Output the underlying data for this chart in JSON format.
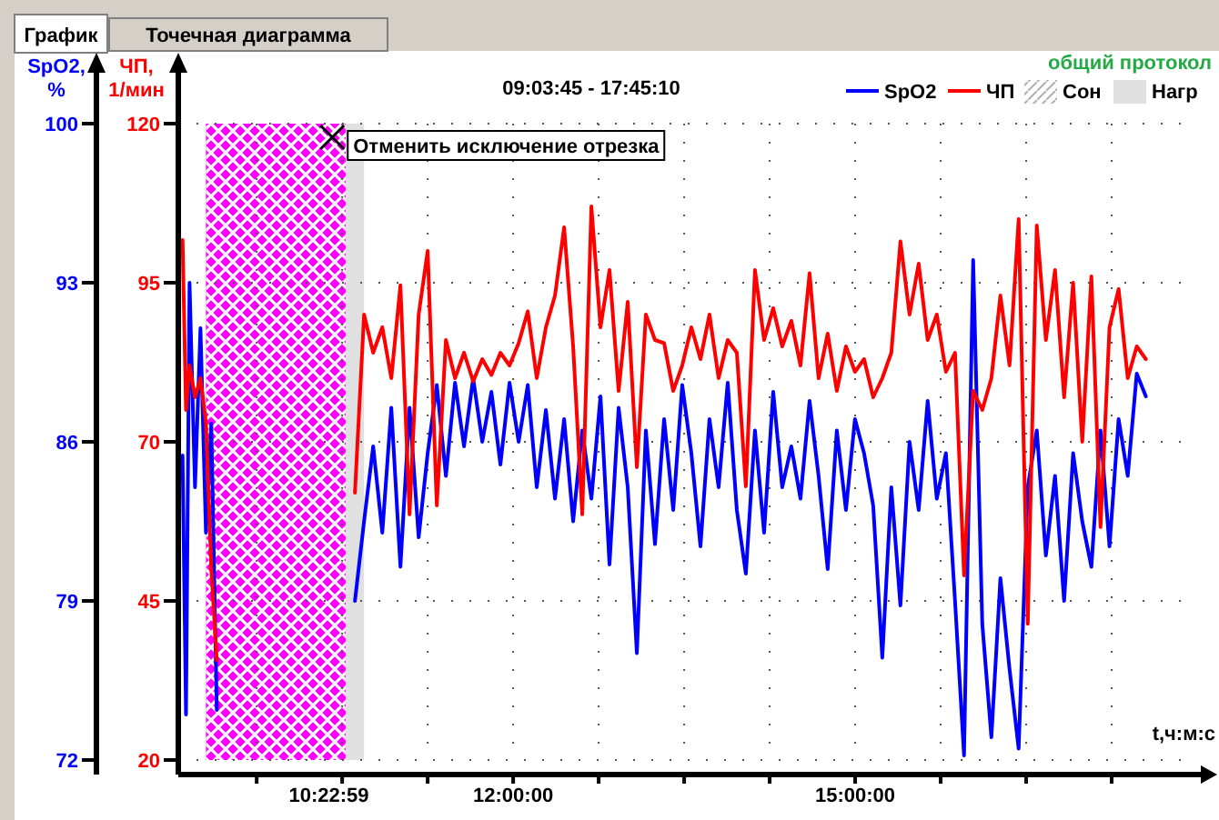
{
  "chart_data": {
    "type": "line",
    "title": "09:03:45  -  17:45:10",
    "xlabel": "t,ч:м:с",
    "ylabel": "SpO2, %",
    "y2label": "ЧП, 1/мин",
    "annotations": [
      "График",
      "Точечная диаграмма",
      "общий протокол",
      "Сон",
      "Отменить исключение отрезка"
    ],
    "x": [
      9.1,
      9.13,
      9.161,
      9.209,
      9.257,
      9.305,
      9.352,
      9.4,
      10.0,
      10.612,
      10.692,
      10.772,
      10.852,
      10.931,
      11.011,
      11.091,
      11.171,
      11.25,
      11.33,
      11.41,
      11.49,
      11.569,
      11.649,
      11.729,
      11.809,
      11.888,
      11.968,
      12.048,
      12.128,
      12.207,
      12.287,
      12.367,
      12.447,
      12.526,
      12.606,
      12.686,
      12.766,
      12.845,
      12.925,
      13.005,
      13.085,
      13.164,
      13.244,
      13.324,
      13.404,
      13.483,
      13.563,
      13.643,
      13.722,
      13.802,
      13.882,
      13.962,
      14.041,
      14.121,
      14.201,
      14.281,
      14.36,
      14.44,
      14.52,
      14.6,
      14.679,
      14.759,
      14.839,
      14.919,
      14.998,
      15.078,
      15.158,
      15.238,
      15.317,
      15.397,
      15.477,
      15.557,
      15.636,
      15.716,
      15.796,
      15.876,
      15.955,
      16.035,
      16.115,
      16.195,
      16.274,
      16.354,
      16.434,
      16.514,
      16.593,
      16.673,
      16.753,
      16.833,
      16.912,
      16.992,
      17.072,
      17.152,
      17.231,
      17.311,
      17.391,
      17.47,
      17.55
    ],
    "series": [
      {
        "name": "SpO2",
        "color": "#0000ff",
        "values": [
          85.4,
          74,
          93,
          84,
          91,
          82,
          86.8,
          74.2,
          null,
          79,
          82.5,
          85.8,
          82,
          87.5,
          80.5,
          87.5,
          81.8,
          85.5,
          88.5,
          84.5,
          88.6,
          85.8,
          88.8,
          86,
          88.2,
          85,
          88.6,
          86,
          88.5,
          84,
          87.4,
          83.5,
          87,
          82.5,
          86.5,
          83.5,
          88,
          80.6,
          87.5,
          84,
          76.7,
          86.5,
          81.5,
          87,
          83,
          88.5,
          85.5,
          81.4,
          87,
          84,
          88.6,
          83,
          80.2,
          86.5,
          82,
          88.2,
          84,
          85.8,
          83.5,
          87.8,
          84.5,
          80.4,
          86.5,
          83,
          87,
          85.5,
          83.2,
          76.5,
          84,
          78.8,
          86,
          83,
          87.8,
          83.5,
          85.5,
          79,
          72.2,
          94,
          78,
          73,
          80,
          76,
          72.5,
          84,
          86.5,
          81,
          84.5,
          79,
          85.5,
          82.5,
          80.5,
          86.5,
          81.4,
          87,
          84.5,
          89,
          88
        ]
      },
      {
        "name": "ЧП",
        "color": "#ff0000",
        "axis": "y2",
        "values": [
          101.7,
          75,
          82,
          77,
          80,
          73,
          50,
          35.7,
          null,
          62,
          90,
          84,
          88,
          80,
          94.6,
          58.6,
          90,
          100,
          60,
          86,
          80,
          84,
          79.5,
          83,
          80.5,
          84,
          82,
          85.5,
          90.5,
          80,
          88,
          93,
          103.7,
          85,
          58.6,
          107,
          88,
          97,
          78,
          92,
          66,
          90,
          86,
          85.5,
          78,
          82,
          88,
          83,
          90,
          80,
          86,
          84,
          63,
          97,
          86,
          91,
          85,
          89,
          82,
          96.5,
          80,
          87,
          78,
          85,
          81,
          83,
          77,
          80,
          84,
          101.5,
          90,
          98,
          86,
          90,
          81,
          84,
          49,
          78,
          75,
          80,
          93,
          82,
          105,
          41.4,
          104,
          86,
          97,
          77,
          95,
          70,
          96,
          56.6,
          88,
          94,
          80,
          85,
          83
        ]
      }
    ],
    "xlim": [
      9.0625,
      18
    ],
    "xticks": [
      {
        "value": 9.75,
        "label": null
      },
      {
        "value": 10.3831,
        "label": "10:22:59"
      },
      {
        "value": 10.5,
        "label": null
      },
      {
        "value": 11.25,
        "label": null
      },
      {
        "value": 12,
        "label": "12:00:00"
      },
      {
        "value": 12.75,
        "label": null
      },
      {
        "value": 13.5,
        "label": null
      },
      {
        "value": 14.25,
        "label": null
      },
      {
        "value": 15,
        "label": "15:00:00"
      },
      {
        "value": 15.75,
        "label": null
      },
      {
        "value": 16.5,
        "label": null
      },
      {
        "value": 17.25,
        "label": null
      }
    ],
    "ylim": [
      72,
      100
    ],
    "yticks": [
      72,
      79,
      86,
      93,
      100
    ],
    "y2lim": [
      20,
      120
    ],
    "y2ticks": [
      20,
      45,
      70,
      95,
      120
    ],
    "bands": [
      {
        "axis": "x",
        "from": 9.305,
        "to": 10.533,
        "color": "#ff00ff"
      },
      {
        "axis": "x",
        "from": 10.533,
        "to": 10.692,
        "color": "#e0e0e0",
        "label": "Нагр"
      }
    ],
    "grid": true,
    "legend": "top right",
    "marker": "none",
    "line_style": "solid"
  }
}
